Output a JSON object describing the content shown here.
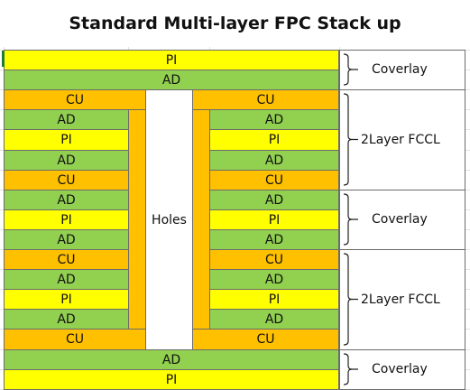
{
  "title": "Standard Multi-layer FPC Stack up",
  "full_rows": [
    {
      "layer": "PI",
      "row": 0
    },
    {
      "layer": "AD",
      "row": 1
    },
    {
      "layer": "AD",
      "row": 15
    },
    {
      "layer": "PI",
      "row": 16
    }
  ],
  "side_rows": [
    {
      "layer": "CU",
      "row": 2
    },
    {
      "layer": "AD",
      "row": 3
    },
    {
      "layer": "PI",
      "row": 4
    },
    {
      "layer": "AD",
      "row": 5
    },
    {
      "layer": "CU",
      "row": 6
    },
    {
      "layer": "AD",
      "row": 7
    },
    {
      "layer": "PI",
      "row": 8
    },
    {
      "layer": "AD",
      "row": 9
    },
    {
      "layer": "CU",
      "row": 10
    },
    {
      "layer": "AD",
      "row": 11
    },
    {
      "layer": "PI",
      "row": 12
    },
    {
      "layer": "AD",
      "row": 13
    },
    {
      "layer": "CU",
      "row": 14
    }
  ],
  "holes_label": "Holes",
  "groups": [
    {
      "label": "Coverlay",
      "start": 0,
      "end": 1
    },
    {
      "label": "2Layer FCCL",
      "start": 2,
      "end": 6
    },
    {
      "label": "Coverlay",
      "start": 7,
      "end": 9
    },
    {
      "label": "2Layer FCCL",
      "start": 10,
      "end": 14
    },
    {
      "label": "Coverlay",
      "start": 15,
      "end": 16
    }
  ],
  "colors": {
    "PI": "#ffff00",
    "AD": "#92d050",
    "CU": "#ffc000"
  }
}
